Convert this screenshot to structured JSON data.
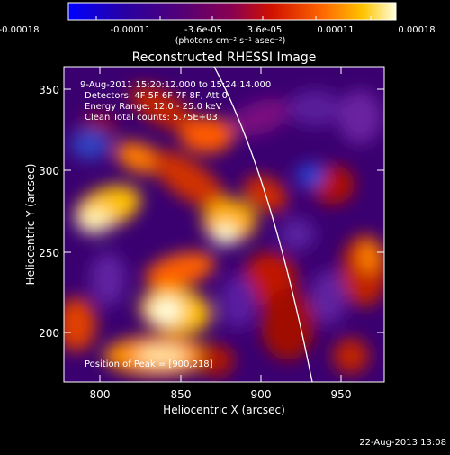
{
  "colorbar": {
    "tick_labels": [
      "-0.00018",
      "-0.00011",
      "-3.6e-05",
      "3.6e-05",
      "0.00011",
      "0.00018"
    ],
    "units_html": "(photons cm⁻² s⁻¹ asec⁻²)"
  },
  "plot": {
    "title": "Reconstructed RHESSI Image",
    "info_lines": [
      "9-Aug-2011 15:20:12.000 to 15:24:14.000",
      "Detectors: 4F 5F 6F 7F 8F, Att 0",
      "Energy Range: 12.0 - 25.0 keV",
      "Clean    Total counts: 5.75E+03"
    ],
    "peak_text": "Position of Peak = [900,218]"
  },
  "axes": {
    "xlabel": "Heliocentric X (arcsec)",
    "ylabel": "Heliocentric Y (arcsec)",
    "x_ticks": [
      "800",
      "850",
      "900",
      "950"
    ],
    "y_ticks": [
      "200",
      "250",
      "300",
      "350"
    ]
  },
  "footer": {
    "timestamp": "22-Aug-2013 13:08"
  },
  "colors": {
    "background": "#000000",
    "limb_line": "#ffffff",
    "text": "#ffffff",
    "colormap": [
      "#0000ff",
      "#3a0088",
      "#7a0055",
      "#c01000",
      "#ff6000",
      "#ffc000",
      "#ffffff"
    ]
  }
}
